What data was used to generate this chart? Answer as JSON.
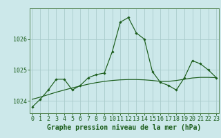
{
  "title": "Graphe pression niveau de la mer (hPa)",
  "background_color": "#cce8ea",
  "grid_color": "#aacccc",
  "line_color_smooth": "#1a5c1a",
  "line_color_main": "#1a5c1a",
  "x_values": [
    0,
    1,
    2,
    3,
    4,
    5,
    6,
    7,
    8,
    9,
    10,
    11,
    12,
    13,
    14,
    15,
    16,
    17,
    18,
    19,
    20,
    21,
    22,
    23
  ],
  "y_main": [
    1023.8,
    1024.05,
    1024.35,
    1024.7,
    1024.7,
    1024.35,
    1024.5,
    1024.75,
    1024.85,
    1024.9,
    1025.6,
    1026.55,
    1026.7,
    1026.2,
    1026.0,
    1024.95,
    1024.6,
    1024.5,
    1024.35,
    1024.75,
    1025.3,
    1025.2,
    1025.0,
    1024.75
  ],
  "y_smooth": [
    1024.05,
    1024.12,
    1024.2,
    1024.28,
    1024.35,
    1024.42,
    1024.48,
    1024.54,
    1024.59,
    1024.63,
    1024.66,
    1024.68,
    1024.69,
    1024.69,
    1024.68,
    1024.66,
    1024.63,
    1024.63,
    1024.66,
    1024.7,
    1024.74,
    1024.76,
    1024.76,
    1024.75
  ],
  "ylim": [
    1023.6,
    1027.0
  ],
  "yticks": [
    1024,
    1025,
    1026
  ],
  "xlim": [
    -0.3,
    23.3
  ],
  "title_fontsize": 7,
  "tick_fontsize": 6,
  "axis_color": "#1a5c1a",
  "border_color": "#5a8a5a"
}
